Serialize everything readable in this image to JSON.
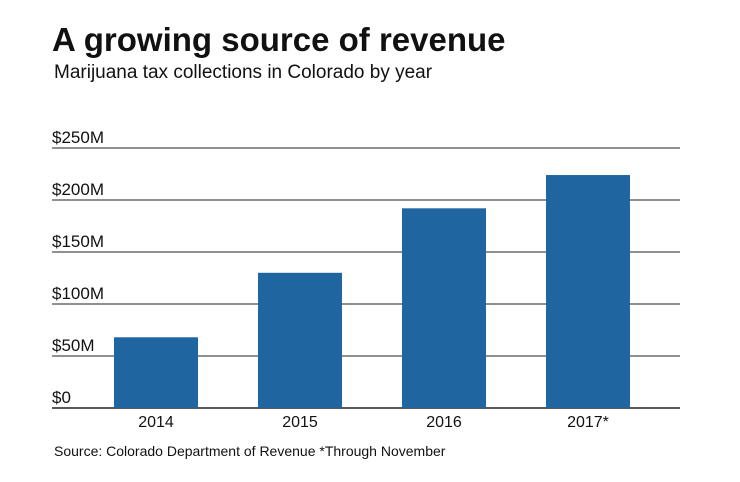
{
  "header": {
    "title": "A growing source of revenue",
    "subtitle": "Marijuana tax collections in Colorado by year"
  },
  "footer": {
    "source": "Source: Colorado Department of Revenue *Through November"
  },
  "colors": {
    "bar": "#1f65a0",
    "gridline": "#222222",
    "text": "#111111"
  },
  "chart_data": {
    "type": "bar",
    "title": "A growing source of revenue",
    "subtitle": "Marijuana tax collections in Colorado by year",
    "xlabel": "",
    "ylabel": "",
    "categories": [
      "2014",
      "2015",
      "2016",
      "2017*"
    ],
    "values": [
      68,
      130,
      192,
      224
    ],
    "value_unit": "$M",
    "ylim": [
      0,
      250
    ],
    "yticks": [
      0,
      50,
      100,
      150,
      200,
      250
    ],
    "ytick_labels": [
      "$0",
      "$50M",
      "$100M",
      "$150M",
      "$200M",
      "$250M"
    ],
    "grid": true,
    "legend": "none",
    "note": "*Through November"
  }
}
